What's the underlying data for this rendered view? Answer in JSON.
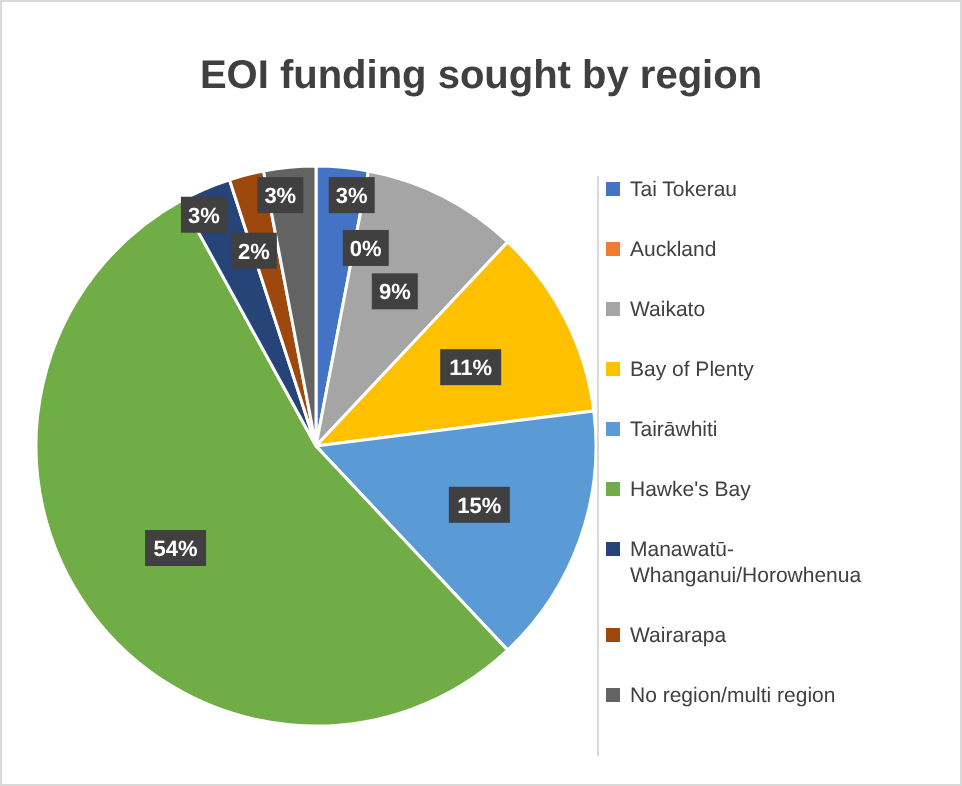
{
  "chart_data": {
    "type": "pie",
    "title": "EOI funding sought by region",
    "categories": [
      "Tai Tokerau",
      "Auckland",
      "Waikato",
      "Bay of Plenty",
      "Tairāwhiti",
      "Hawke's Bay",
      "Manawatū-Whanganui/Horowhenua",
      "Wairarapa",
      "No region/multi region"
    ],
    "values": [
      3,
      0,
      9,
      11,
      15,
      54,
      3,
      2,
      3
    ],
    "colors": [
      "#4472c4",
      "#ed7d31",
      "#a5a5a5",
      "#ffc000",
      "#5b9bd5",
      "#70ad47",
      "#264478",
      "#9e480e",
      "#636363"
    ],
    "value_labels": [
      "3%",
      "0%",
      "9%",
      "11%",
      "15%",
      "54%",
      "3%",
      "2%",
      "3%"
    ],
    "legend": "right"
  }
}
